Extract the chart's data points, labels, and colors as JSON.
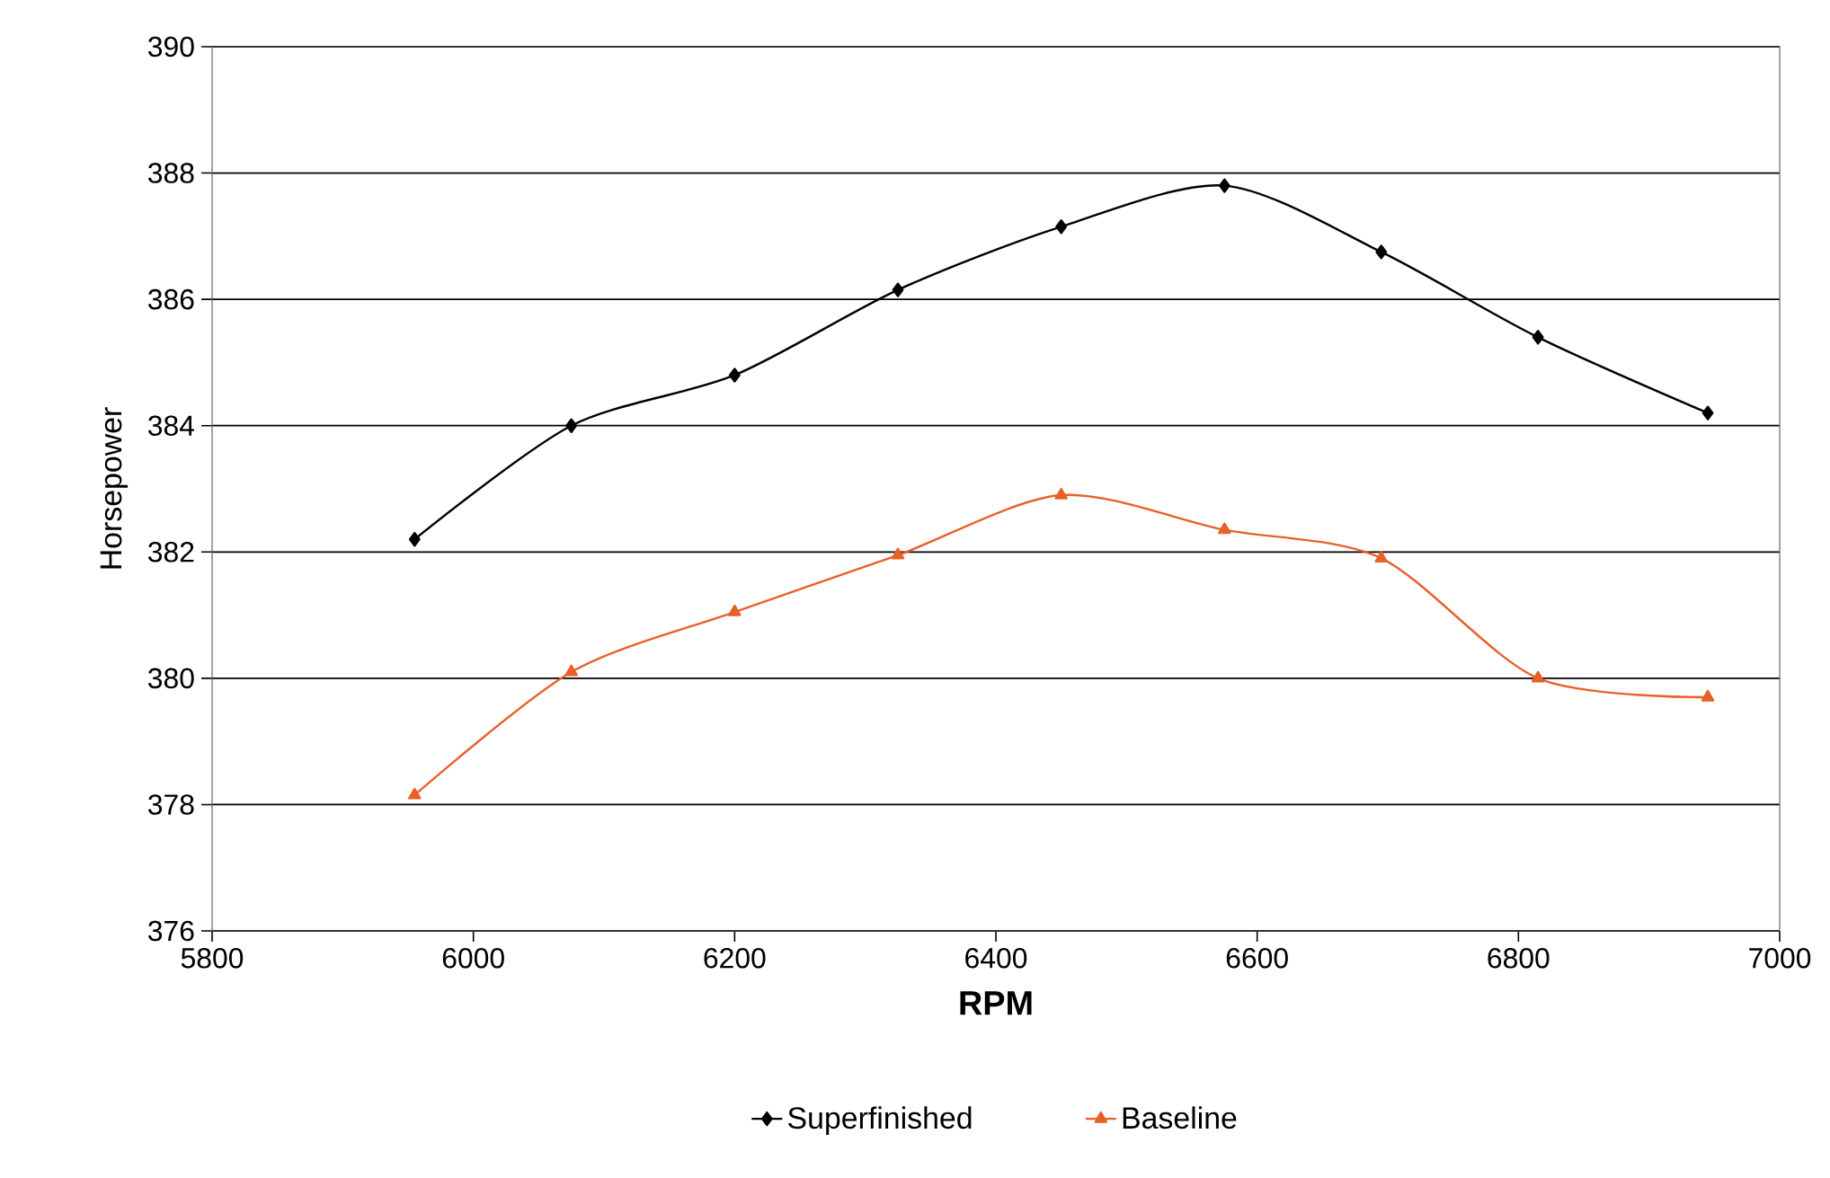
{
  "chart_data": {
    "type": "line",
    "xlabel": "RPM",
    "ylabel": "Horsepower",
    "series": [
      {
        "name": "Superfinished",
        "color": "#000000",
        "marker": "diamond",
        "x": [
          5955,
          6075,
          6200,
          6325,
          6450,
          6575,
          6695,
          6815,
          6945
        ],
        "values": [
          382.2,
          384.0,
          384.8,
          386.15,
          387.15,
          387.8,
          386.75,
          385.4,
          384.2
        ]
      },
      {
        "name": "Baseline",
        "color": "#e8602a",
        "marker": "triangle",
        "x": [
          5955,
          6075,
          6200,
          6325,
          6450,
          6575,
          6695,
          6815,
          6945
        ],
        "values": [
          378.15,
          380.1,
          381.05,
          381.95,
          382.9,
          382.35,
          381.9,
          380.0,
          379.7
        ]
      }
    ],
    "xlim": [
      5800,
      7000
    ],
    "xticks": [
      5800,
      6000,
      6200,
      6400,
      6600,
      6800,
      7000
    ],
    "ylim": [
      376,
      390
    ],
    "yticks": [
      376,
      378,
      380,
      382,
      384,
      386,
      388,
      390
    ],
    "grid": "y",
    "legend": "bottom"
  }
}
